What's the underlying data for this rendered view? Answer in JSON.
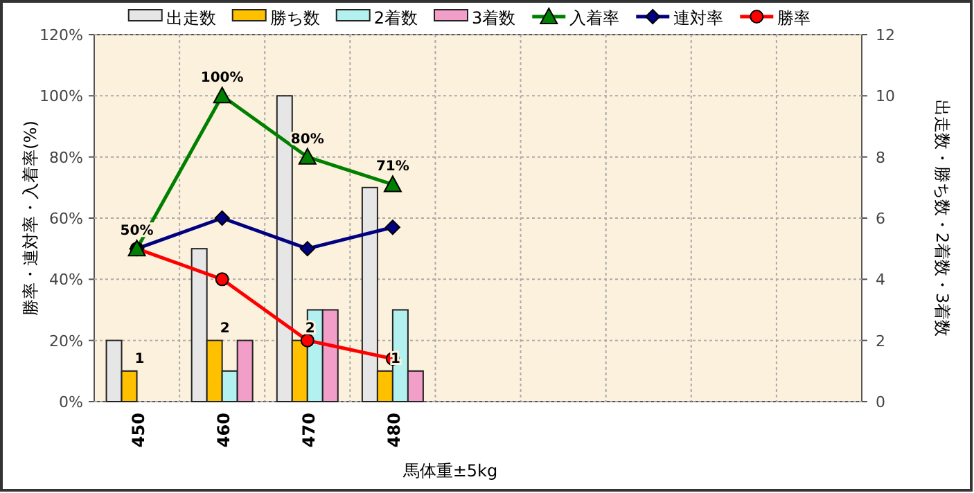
{
  "chart_data": {
    "type": "bar",
    "xlabel": "馬体重±5kg",
    "ylabel": "勝率・連対率・入着率(%)",
    "y2label": "出走数・勝ち数・2着数・3着数",
    "categories": [
      "450",
      "460",
      "470",
      "480",
      null,
      null,
      null,
      null,
      null
    ],
    "series": [
      {
        "name": "出走数",
        "color": "#e6e6e6",
        "axis": "y2",
        "values": [
          2,
          5,
          10,
          7,
          null,
          null,
          null,
          null,
          null
        ]
      },
      {
        "name": "勝ち数",
        "color": "#ffc000",
        "axis": "y2",
        "values": [
          1,
          2,
          2,
          1,
          null,
          null,
          null,
          null,
          null
        ],
        "value_labels": [
          "1",
          "2",
          "2",
          "1",
          null,
          null,
          null,
          null,
          null
        ]
      },
      {
        "name": "2着数",
        "color": "#b3f0f0",
        "axis": "y2",
        "values": [
          0,
          1,
          3,
          3,
          null,
          null,
          null,
          null,
          null
        ]
      },
      {
        "name": "3着数",
        "color": "#f19ec8",
        "axis": "y2",
        "values": [
          0,
          2,
          3,
          1,
          null,
          null,
          null,
          null,
          null
        ]
      },
      {
        "name": "入着率",
        "type": "line",
        "color": "#008000",
        "marker": "triangle",
        "values": [
          50,
          100,
          80,
          71,
          null,
          null,
          null,
          null,
          null
        ],
        "value_labels": [
          "50%",
          "100%",
          "80%",
          "71%",
          null,
          null,
          null,
          null,
          null
        ]
      },
      {
        "name": "連対率",
        "type": "line",
        "color": "#000080",
        "marker": "diamond",
        "values": [
          50,
          60,
          50,
          57,
          null,
          null,
          null,
          null,
          null
        ]
      },
      {
        "name": "勝率",
        "type": "line",
        "color": "#ff0000",
        "marker": "circle",
        "values": [
          50,
          40,
          20,
          14,
          null,
          null,
          null,
          null,
          null
        ]
      }
    ],
    "ylim": [
      0,
      120
    ],
    "yticks": [
      {
        "value": 0,
        "label": "0%"
      },
      {
        "value": 20,
        "label": "20%"
      },
      {
        "value": 40,
        "label": "40%"
      },
      {
        "value": 60,
        "label": "60%"
      },
      {
        "value": 80,
        "label": "80%"
      },
      {
        "value": 100,
        "label": "100%"
      },
      {
        "value": 120,
        "label": "120%"
      }
    ],
    "y2lim": [
      0,
      12
    ],
    "y2ticks": [
      0,
      2,
      4,
      6,
      8,
      10,
      12
    ],
    "grid": true,
    "legend": "top"
  }
}
